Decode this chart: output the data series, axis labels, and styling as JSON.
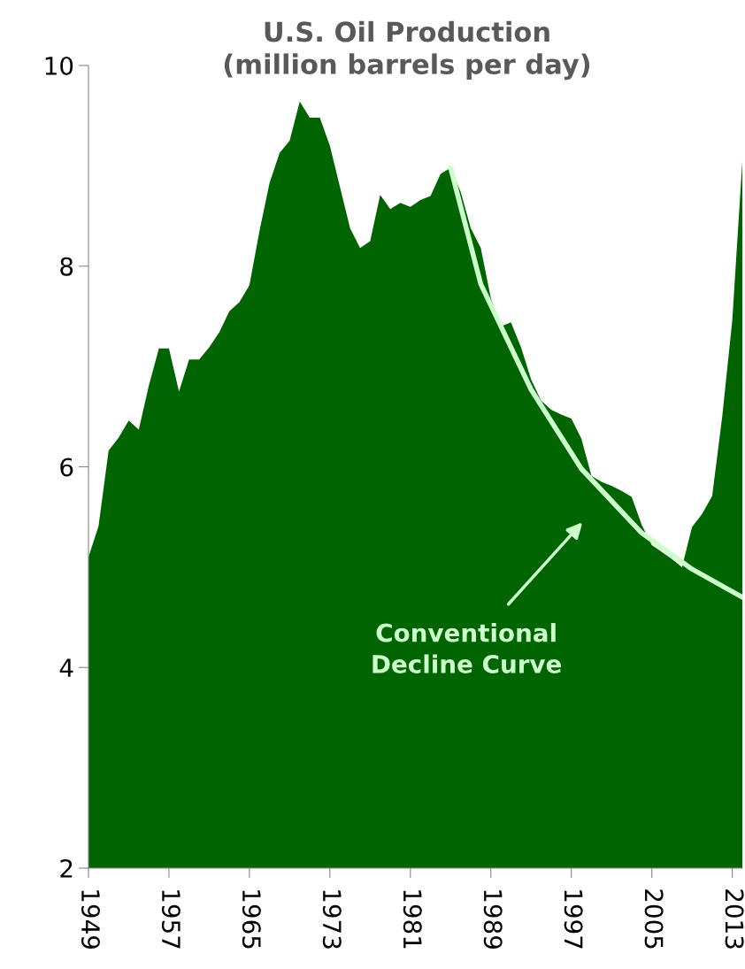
{
  "chart_data": {
    "type": "area",
    "title": "U.S. Oil Production\n(million barrels per day)",
    "x": [
      1949,
      1950,
      1951,
      1952,
      1953,
      1954,
      1955,
      1956,
      1957,
      1958,
      1959,
      1960,
      1961,
      1962,
      1963,
      1964,
      1965,
      1966,
      1967,
      1968,
      1969,
      1970,
      1971,
      1972,
      1973,
      1974,
      1975,
      1976,
      1977,
      1978,
      1979,
      1980,
      1981,
      1982,
      1983,
      1984,
      1985,
      1986,
      1987,
      1988,
      1989,
      1990,
      1991,
      1992,
      1993,
      1994,
      1995,
      1996,
      1997,
      1998,
      1999,
      2000,
      2001,
      2002,
      2003,
      2004,
      2005,
      2006,
      2007,
      2008,
      2009,
      2010,
      2011,
      2012,
      2013,
      2014
    ],
    "series": [
      {
        "color": "#006400",
        "values": [
          5.1,
          5.41,
          6.16,
          6.29,
          6.46,
          6.37,
          6.81,
          7.18,
          7.18,
          6.75,
          7.07,
          7.07,
          7.19,
          7.34,
          7.55,
          7.64,
          7.81,
          8.35,
          8.83,
          9.13,
          9.25,
          9.64,
          9.48,
          9.48,
          9.2,
          8.79,
          8.38,
          8.18,
          8.25,
          8.71,
          8.57,
          8.63,
          8.59,
          8.66,
          8.7,
          8.92,
          8.98,
          8.74,
          8.38,
          8.18,
          7.68,
          7.4,
          7.44,
          7.19,
          6.87,
          6.66,
          6.57,
          6.52,
          6.48,
          6.28,
          5.91,
          5.85,
          5.81,
          5.76,
          5.7,
          5.42,
          5.22,
          5.15,
          5.08,
          5.0,
          5.4,
          5.53,
          5.71,
          6.5,
          7.46,
          9.05
        ]
      },
      {
        "type": "line",
        "color": "#ccffcc",
        "x": [
          1985,
          1988,
          1993,
          1998,
          2004,
          2009,
          2014
        ],
        "values": [
          8.98,
          7.82,
          6.77,
          5.98,
          5.34,
          4.98,
          4.7
        ]
      }
    ],
    "annotations": [
      "Conventional\nDecline Curve"
    ],
    "xlim": [
      1949,
      2014
    ],
    "xticks": [
      1949,
      1957,
      1965,
      1973,
      1981,
      1989,
      1997,
      2005,
      2013
    ],
    "ylim": [
      2,
      10
    ],
    "yticks": [
      2,
      4,
      6,
      8,
      10
    ],
    "grid": false,
    "legend": false
  }
}
